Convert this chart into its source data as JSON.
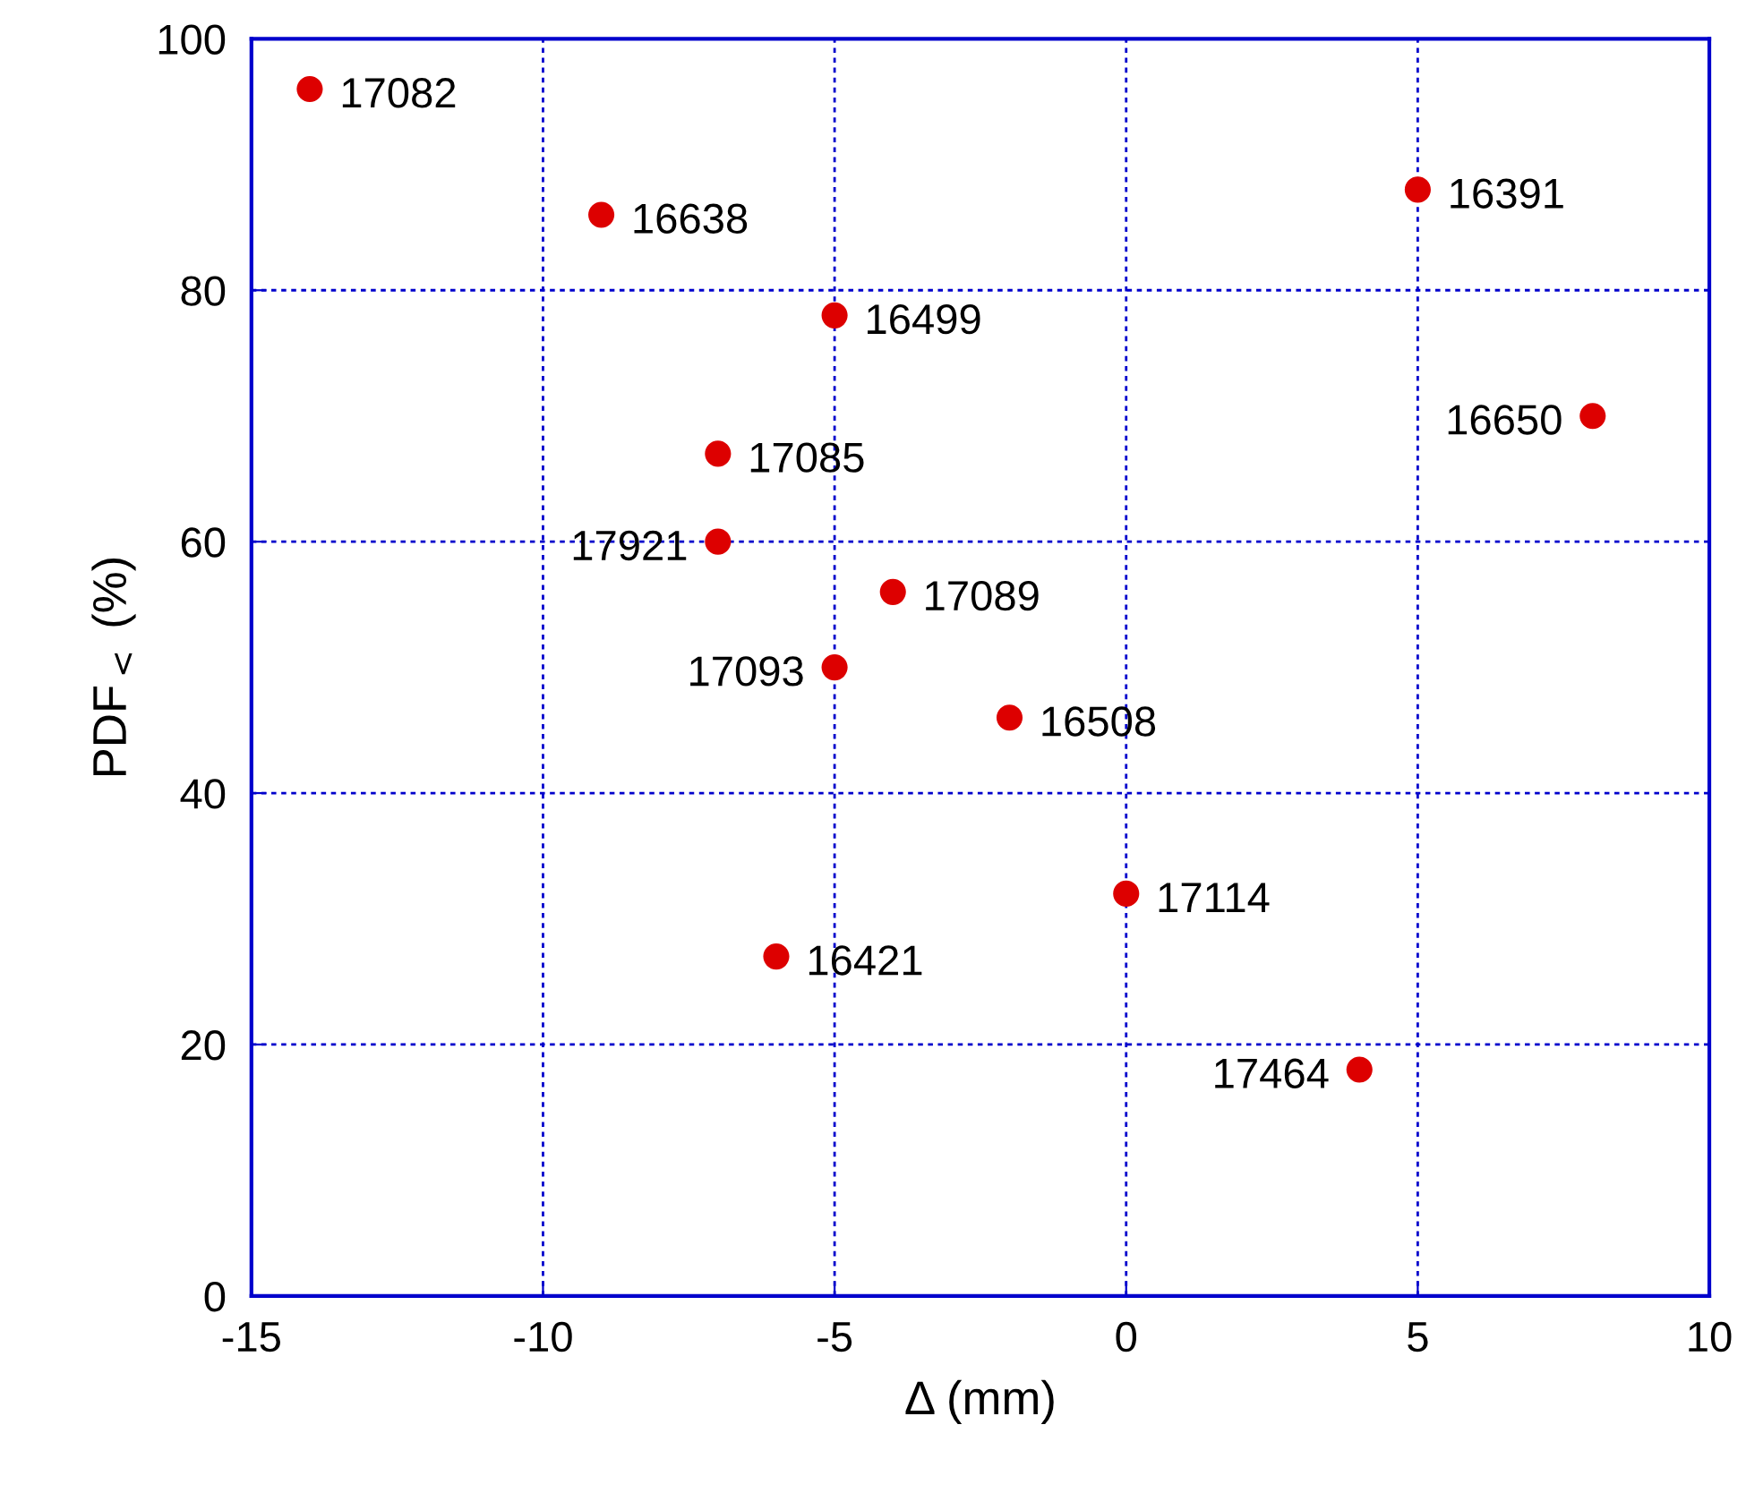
{
  "chart_data": {
    "type": "scatter",
    "xlabel": "Δ (mm)",
    "ylabel": "PDF$_{<}$ (%)",
    "x": [
      -14,
      -9,
      -5,
      -7,
      -7,
      -4,
      -5,
      -2,
      -6,
      0,
      4,
      5,
      8
    ],
    "series": [
      {
        "color": "#dd0000",
        "values": [
          96,
          86,
          78,
          67,
          60,
          56,
          50,
          46,
          27,
          32,
          18,
          88,
          70
        ]
      }
    ],
    "value_labels": [
      "17082",
      "16638",
      "16499",
      "17085",
      "17921",
      "17089",
      "17093",
      "16508",
      "16421",
      "17114",
      "17464",
      "16391",
      "16650"
    ],
    "xlim": [
      -15,
      10
    ],
    "ylim": [
      0,
      100
    ],
    "xticks": [
      -15,
      -10,
      -5,
      0,
      5,
      10
    ],
    "yticks": [
      0,
      20,
      40,
      60,
      80,
      100
    ],
    "grid": true,
    "marker": "circle"
  }
}
